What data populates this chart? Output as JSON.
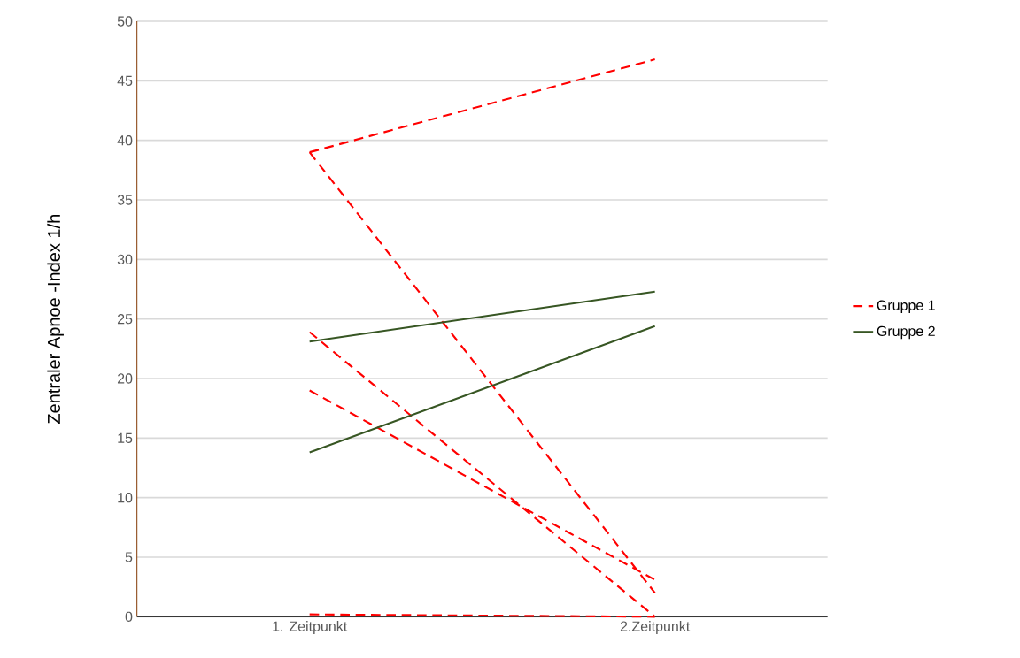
{
  "chart_data": {
    "type": "line",
    "ylabel": "Zentraler Apnoe -Index 1/h",
    "categories": [
      "1. Zeitpunkt",
      "2.Zeitpunkt"
    ],
    "ylim": [
      0,
      50
    ],
    "yticks": [
      0,
      5,
      10,
      15,
      20,
      25,
      30,
      35,
      40,
      45,
      50
    ],
    "grid": "y",
    "legend": "right",
    "marker": "none",
    "series": [
      {
        "name": "Gruppe 1",
        "color": "#ff0000",
        "line_style": "dashed",
        "values": [
          39.0,
          46.8
        ]
      },
      {
        "color": "#ff0000",
        "line_style": "dashed",
        "values": [
          39.0,
          2.0
        ]
      },
      {
        "color": "#ff0000",
        "line_style": "dashed",
        "values": [
          23.9,
          0
        ]
      },
      {
        "color": "#ff0000",
        "line_style": "dashed",
        "values": [
          19.0,
          3.1
        ]
      },
      {
        "color": "#ff0000",
        "line_style": "dashed",
        "values": [
          0.2,
          0
        ]
      },
      {
        "name": "Gruppe 2",
        "color": "#375623",
        "line_style": "solid",
        "values": [
          23.1,
          27.3
        ]
      },
      {
        "color": "#375623",
        "line_style": "solid",
        "values": [
          13.8,
          24.4
        ]
      }
    ]
  }
}
